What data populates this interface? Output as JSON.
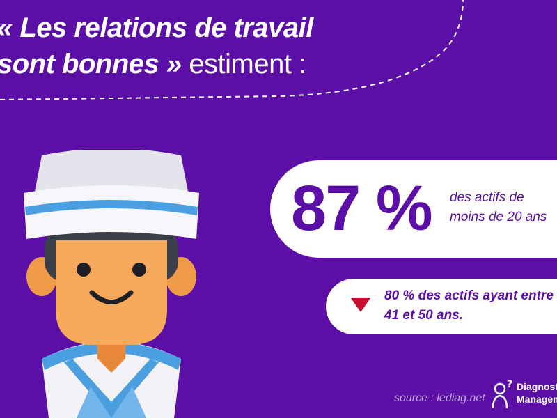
{
  "title": {
    "line1": "« Les relations de travail",
    "line2_emphasis": "sont bonnes »",
    "line2_rest": " estiment :"
  },
  "main_stat": {
    "value": "87 %",
    "description_line1": "des actifs de",
    "description_line2": "moins de 20 ans"
  },
  "comparison": {
    "line1": "80 % des actifs ayant entre",
    "line2": "41 et 50 ans.",
    "indicator": "down-triangle-icon",
    "indicator_color": "#c8102e"
  },
  "source": "source : lediag.net",
  "logo": {
    "line1": "Diagnostic",
    "line2": "Management",
    "icon": "person-question-icon"
  },
  "colors": {
    "background": "#5b0fa6",
    "accent": "#5b0fa6",
    "card": "#ffffff"
  }
}
